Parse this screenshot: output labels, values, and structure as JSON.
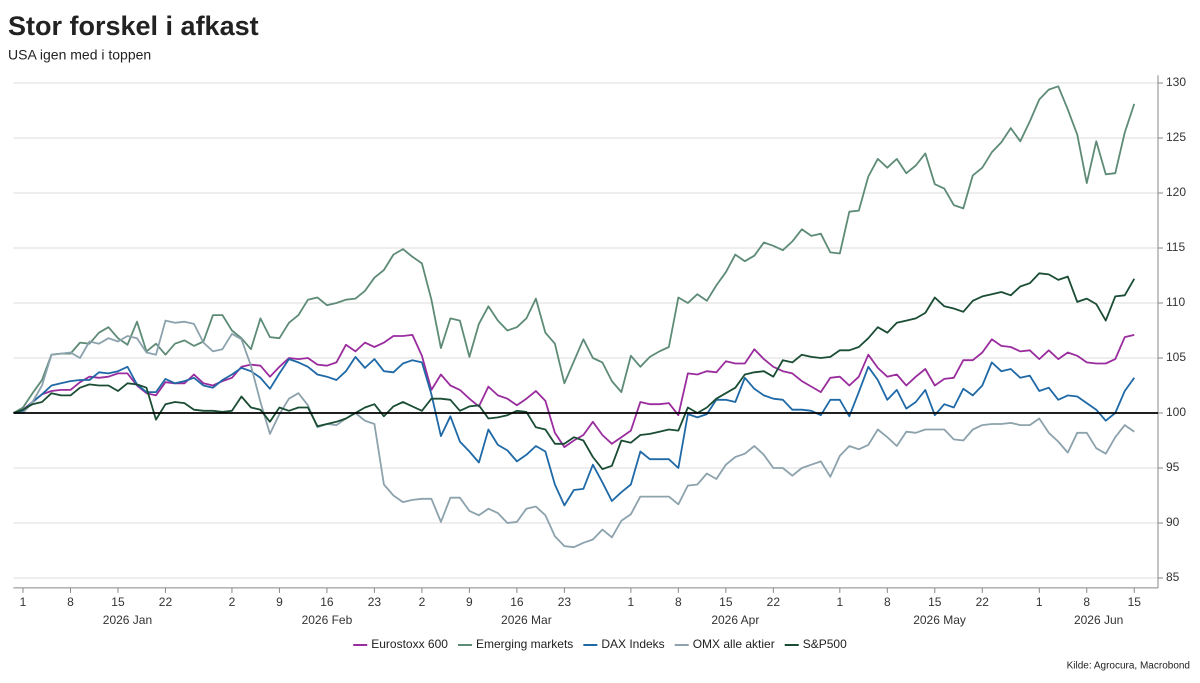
{
  "chart_data": {
    "type": "line",
    "title": "Stor forskel i afkast",
    "subtitle": "USA igen med i toppen",
    "source": "Kilde: Agrocura, Macrobond",
    "xlim": [
      0,
      120.5
    ],
    "ylim": [
      84.1,
      130.7
    ],
    "yticks": [
      85,
      90,
      95,
      100,
      105,
      110,
      115,
      120,
      125,
      130
    ],
    "reference_line": 100,
    "grid": true,
    "legend": "bottom",
    "xticks": [
      {
        "value": 1,
        "label": "1"
      },
      {
        "value": 6,
        "label": "8"
      },
      {
        "value": 11,
        "label": "15"
      },
      {
        "value": 16,
        "label": "22"
      },
      {
        "value": 23,
        "label": "2"
      },
      {
        "value": 28,
        "label": "9"
      },
      {
        "value": 33,
        "label": "16"
      },
      {
        "value": 38,
        "label": "23"
      },
      {
        "value": 43,
        "label": "2"
      },
      {
        "value": 48,
        "label": "9"
      },
      {
        "value": 53,
        "label": "16"
      },
      {
        "value": 58,
        "label": "23"
      },
      {
        "value": 65,
        "label": "1"
      },
      {
        "value": 70,
        "label": "8"
      },
      {
        "value": 75,
        "label": "15"
      },
      {
        "value": 80,
        "label": "22"
      },
      {
        "value": 87,
        "label": "1"
      },
      {
        "value": 92,
        "label": "8"
      },
      {
        "value": 97,
        "label": "15"
      },
      {
        "value": 102,
        "label": "22"
      },
      {
        "value": 108,
        "label": "1"
      },
      {
        "value": 113,
        "label": "8"
      },
      {
        "value": 118,
        "label": "15"
      }
    ],
    "month_ticks": [
      {
        "value": 1,
        "label": "2026 Jan"
      },
      {
        "value": 23,
        "label": "2026 Feb"
      },
      {
        "value": 43,
        "label": "2026 Mar"
      },
      {
        "value": 65,
        "label": "2026 Apr"
      },
      {
        "value": 87,
        "label": "2026 May"
      },
      {
        "value": 108,
        "label": "2026 Jun"
      }
    ],
    "series": [
      {
        "name": "Eurostoxx 600",
        "color": "#9a2d9e",
        "values": [
          100,
          100.3,
          101,
          101.7,
          102,
          102.1,
          102.1,
          102.8,
          103.3,
          103.2,
          103.3,
          103.6,
          103.6,
          102.5,
          101.8,
          101.6,
          102.8,
          102.7,
          102.7,
          103.5,
          102.7,
          102.5,
          102.9,
          103.2,
          104.2,
          104.4,
          104.3,
          103.3,
          104.2,
          105,
          104.9,
          105,
          104.4,
          104.3,
          104.6,
          106.2,
          105.6,
          106.4,
          106,
          106.4,
          107,
          107,
          107.1,
          105.2,
          102.1,
          103.5,
          102.5,
          102.1,
          101.3,
          100.6,
          102.4,
          101.6,
          101.3,
          100.7,
          101.3,
          102,
          101.1,
          98.2,
          96.9,
          97.5,
          98,
          99.2,
          98,
          97.2,
          97.8,
          98.4,
          101,
          100.8,
          100.8,
          100.9,
          99.8,
          103.6,
          103.5,
          103.8,
          103.7,
          104.7,
          104.5,
          104.5,
          105.8,
          104.9,
          104.2,
          103.8,
          103.6,
          102.9,
          102.4,
          101.9,
          103.2,
          103.3,
          102.5,
          103.3,
          105.3,
          104.1,
          103.3,
          103.5,
          102.5,
          103.3,
          104,
          102.5,
          103.1,
          103.2,
          104.8,
          104.8,
          105.5,
          106.7,
          106.1,
          106,
          105.6,
          105.7,
          104.9,
          105.7,
          104.9,
          105.5,
          105.2,
          104.6,
          104.5,
          104.5,
          104.9,
          106.9,
          107.1
        ]
      },
      {
        "name": "Emerging markets",
        "color": "#5d8b76",
        "values": [
          100,
          100.5,
          101.8,
          103,
          105.3,
          105.4,
          105.4,
          106.4,
          106.3,
          107.3,
          107.8,
          106.8,
          106.2,
          108.3,
          105.6,
          106.3,
          105.3,
          106.3,
          106.6,
          106.1,
          106.5,
          108.9,
          108.9,
          107.5,
          106.8,
          105.8,
          108.6,
          106.9,
          106.8,
          108.2,
          108.9,
          110.3,
          110.5,
          109.8,
          110,
          110.3,
          110.4,
          111.1,
          112.3,
          113,
          114.4,
          114.9,
          114.2,
          113.6,
          110.3,
          105.9,
          108.6,
          108.4,
          105.1,
          108.1,
          109.7,
          108.4,
          107.5,
          107.8,
          108.6,
          110.4,
          107.3,
          106.3,
          102.7,
          104.7,
          106.7,
          105,
          104.6,
          102.9,
          101.9,
          105.2,
          104.2,
          105.1,
          105.6,
          106,
          110.5,
          110,
          110.8,
          110.2,
          111.6,
          112.8,
          114.4,
          113.8,
          114.3,
          115.5,
          115.2,
          114.8,
          115.6,
          116.7,
          116.1,
          116.3,
          114.6,
          114.5,
          118.3,
          118.4,
          121.5,
          123.1,
          122.3,
          123.1,
          121.8,
          122.5,
          123.6,
          120.8,
          120.4,
          118.9,
          118.6,
          121.6,
          122.3,
          123.7,
          124.6,
          125.9,
          124.7,
          126.5,
          128.5,
          129.4,
          129.7,
          127.6,
          125.3,
          120.9,
          124.7,
          121.7,
          121.8,
          125.5,
          128.1
        ]
      },
      {
        "name": "DAX Indeks",
        "color": "#1f69a6",
        "values": [
          100,
          100.2,
          101,
          101.7,
          102.5,
          102.7,
          102.9,
          103,
          103,
          103.7,
          103.6,
          103.8,
          104.2,
          102.6,
          101.9,
          101.9,
          103.1,
          102.7,
          102.9,
          103.2,
          102.5,
          102.3,
          103,
          103.5,
          104.1,
          103.8,
          103.2,
          102.2,
          103.6,
          104.9,
          104.6,
          104.2,
          103.5,
          103.3,
          103,
          103.8,
          105.1,
          104.1,
          104.9,
          103.8,
          103.7,
          104.5,
          104.8,
          104.6,
          101.7,
          97.9,
          99.7,
          97.4,
          96.5,
          95.5,
          98.5,
          97.1,
          96.6,
          95.6,
          96.2,
          97,
          96.5,
          93.5,
          91.6,
          93,
          93.1,
          95.3,
          93.7,
          92,
          92.8,
          93.5,
          96.5,
          95.8,
          95.8,
          95.8,
          95,
          99.9,
          99.6,
          99.9,
          101.2,
          101.2,
          101,
          103.2,
          102.2,
          101.6,
          101.3,
          101.2,
          100.3,
          100.3,
          100.2,
          99.8,
          101.2,
          101.2,
          99.7,
          101.9,
          104.2,
          103,
          101.2,
          102.1,
          100.4,
          101,
          102.1,
          99.8,
          100.8,
          100.5,
          102.2,
          101.6,
          102.5,
          104.6,
          103.8,
          104,
          103.2,
          103.4,
          102,
          102.3,
          101.2,
          101.6,
          101.5,
          100.9,
          100.3,
          99.3,
          100,
          102,
          103.2
        ]
      },
      {
        "name": "OMX alle aktier",
        "color": "#8ca2ad",
        "values": [
          100,
          100,
          101,
          102.5,
          105.3,
          105.4,
          105.5,
          105,
          106.5,
          106.3,
          106.8,
          106.5,
          107,
          106.8,
          105.5,
          105.3,
          108.4,
          108.2,
          108.3,
          108.1,
          106.4,
          105.6,
          105.8,
          107.2,
          106.7,
          104.3,
          101,
          98.1,
          99.9,
          101.3,
          101.8,
          100.7,
          98.7,
          99,
          98.9,
          99.5,
          100,
          99.3,
          99,
          93.5,
          92.5,
          91.9,
          92.1,
          92.2,
          92.2,
          90.1,
          92.3,
          92.3,
          91.1,
          90.7,
          91.3,
          90.9,
          90,
          90.1,
          91.3,
          91.5,
          90.7,
          88.8,
          87.9,
          87.8,
          88.2,
          88.5,
          89.4,
          88.7,
          90.2,
          90.8,
          92.4,
          92.4,
          92.4,
          92.4,
          91.7,
          93.4,
          93.5,
          94.5,
          94,
          95.3,
          96,
          96.3,
          97,
          96.2,
          95,
          95,
          94.3,
          95,
          95.3,
          95.6,
          94.2,
          96.1,
          97,
          96.7,
          97.1,
          98.5,
          97.8,
          97,
          98.3,
          98.2,
          98.5,
          98.5,
          98.5,
          97.6,
          97.5,
          98.5,
          98.9,
          99,
          99,
          99.1,
          98.9,
          98.9,
          99.5,
          98.2,
          97.4,
          96.4,
          98.2,
          98.2,
          96.8,
          96.3,
          97.8,
          98.9,
          98.3
        ]
      },
      {
        "name": "S&P500",
        "color": "#1a4d34",
        "values": [
          100,
          100.3,
          100.8,
          101,
          101.8,
          101.6,
          101.6,
          102.3,
          102.6,
          102.5,
          102.5,
          102,
          102.7,
          102.6,
          102.3,
          99.4,
          100.8,
          101,
          100.9,
          100.3,
          100.2,
          100.2,
          100.1,
          100.2,
          101.5,
          100.5,
          100.3,
          99.2,
          100.5,
          100.2,
          100.5,
          100.5,
          98.8,
          99,
          99.2,
          99.5,
          100,
          100.5,
          100.8,
          99.7,
          100.6,
          101,
          100.6,
          100.2,
          101.3,
          101.3,
          101.2,
          100.2,
          100.6,
          100.7,
          99.5,
          99.6,
          99.8,
          100.2,
          100.1,
          98.7,
          98.5,
          97.2,
          97.2,
          97.8,
          97.5,
          96,
          94.9,
          95.2,
          97.5,
          97.3,
          98,
          98.1,
          98.3,
          98.5,
          98.4,
          100.5,
          100,
          100.5,
          101.3,
          101.8,
          102.3,
          103.5,
          103.7,
          103.8,
          103.3,
          104.8,
          104.6,
          105.3,
          105.1,
          105,
          105.1,
          105.7,
          105.7,
          106,
          106.8,
          107.8,
          107.3,
          108.2,
          108.4,
          108.6,
          109.1,
          110.5,
          109.7,
          109.5,
          109.2,
          110.2,
          110.6,
          110.8,
          111,
          110.7,
          111.5,
          111.8,
          112.7,
          112.6,
          112.1,
          112.4,
          110.1,
          110.4,
          109.9,
          108.4,
          110.6,
          110.7,
          112.2
        ]
      }
    ]
  }
}
